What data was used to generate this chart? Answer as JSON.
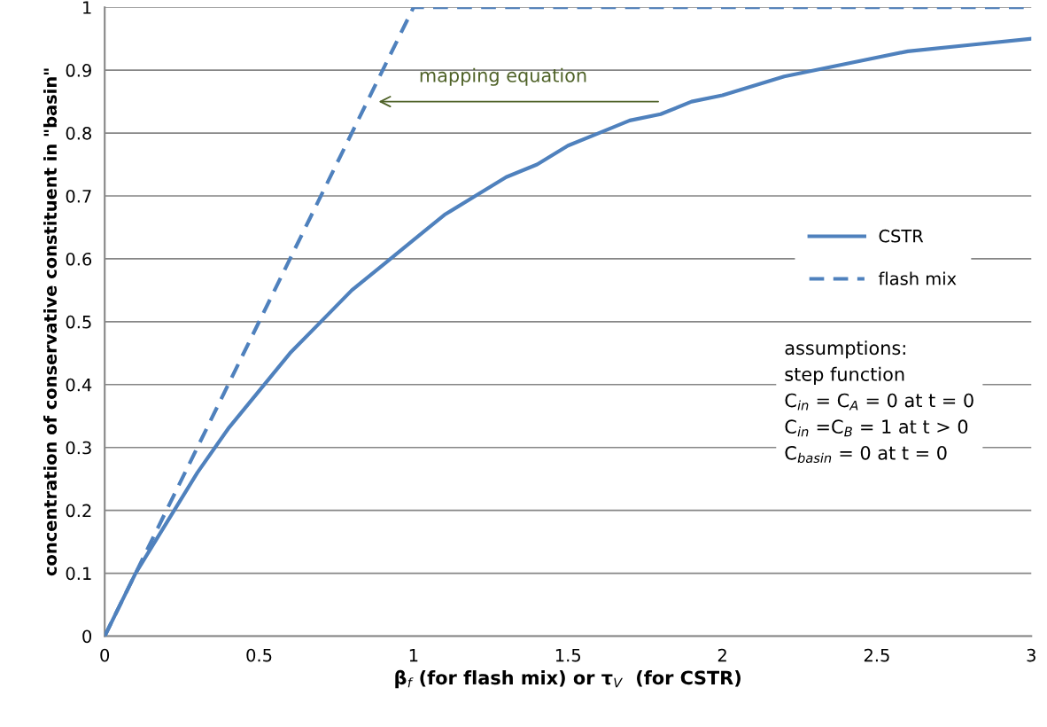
{
  "chart_data": {
    "type": "line",
    "xlabel": "β$_{f}$ (for flash mix) or τ$_{V}$  (for CSTR)",
    "ylabel": "concentration of conservative constituent in \"basin\"",
    "xlim": [
      0,
      3
    ],
    "ylim": [
      0,
      1
    ],
    "xticks": [
      0,
      0.5,
      1,
      1.5,
      2,
      2.5,
      3
    ],
    "yticks": [
      0,
      0.1,
      0.2,
      0.3,
      0.4,
      0.5,
      0.6,
      0.7,
      0.8,
      0.9,
      1
    ],
    "grid": "y",
    "legend": "right",
    "marker": "none",
    "series": [
      {
        "name": "CSTR",
        "color": "#4f81bd",
        "line_style": "solid",
        "x": [
          0,
          0.1,
          0.2,
          0.3,
          0.4,
          0.5,
          0.6,
          0.7,
          0.8,
          0.9,
          1,
          1.1,
          1.2,
          1.3,
          1.4,
          1.5,
          1.6,
          1.7,
          1.8,
          1.9,
          2,
          2.2,
          2.4,
          2.6,
          2.8,
          3
        ],
        "values": [
          0,
          0.1,
          0.18,
          0.26,
          0.33,
          0.39,
          0.45,
          0.5,
          0.55,
          0.59,
          0.63,
          0.67,
          0.7,
          0.73,
          0.75,
          0.78,
          0.8,
          0.82,
          0.83,
          0.85,
          0.86,
          0.89,
          0.91,
          0.93,
          0.94,
          0.95
        ]
      },
      {
        "name": "flash mix",
        "color": "#4f81bd",
        "line_style": "dashed",
        "x": [
          0,
          1,
          3
        ],
        "values": [
          0,
          1,
          1
        ]
      }
    ],
    "annotations": [
      "mapping equation",
      "assumptions:\nstep function\nC$_{in}$ = C$_{A}$ = 0 at t = 0\nC$_{in}$ =C$_{B}$ = 1 at t > 0\nC$_{basin}$ = 0 at t = 0"
    ]
  }
}
